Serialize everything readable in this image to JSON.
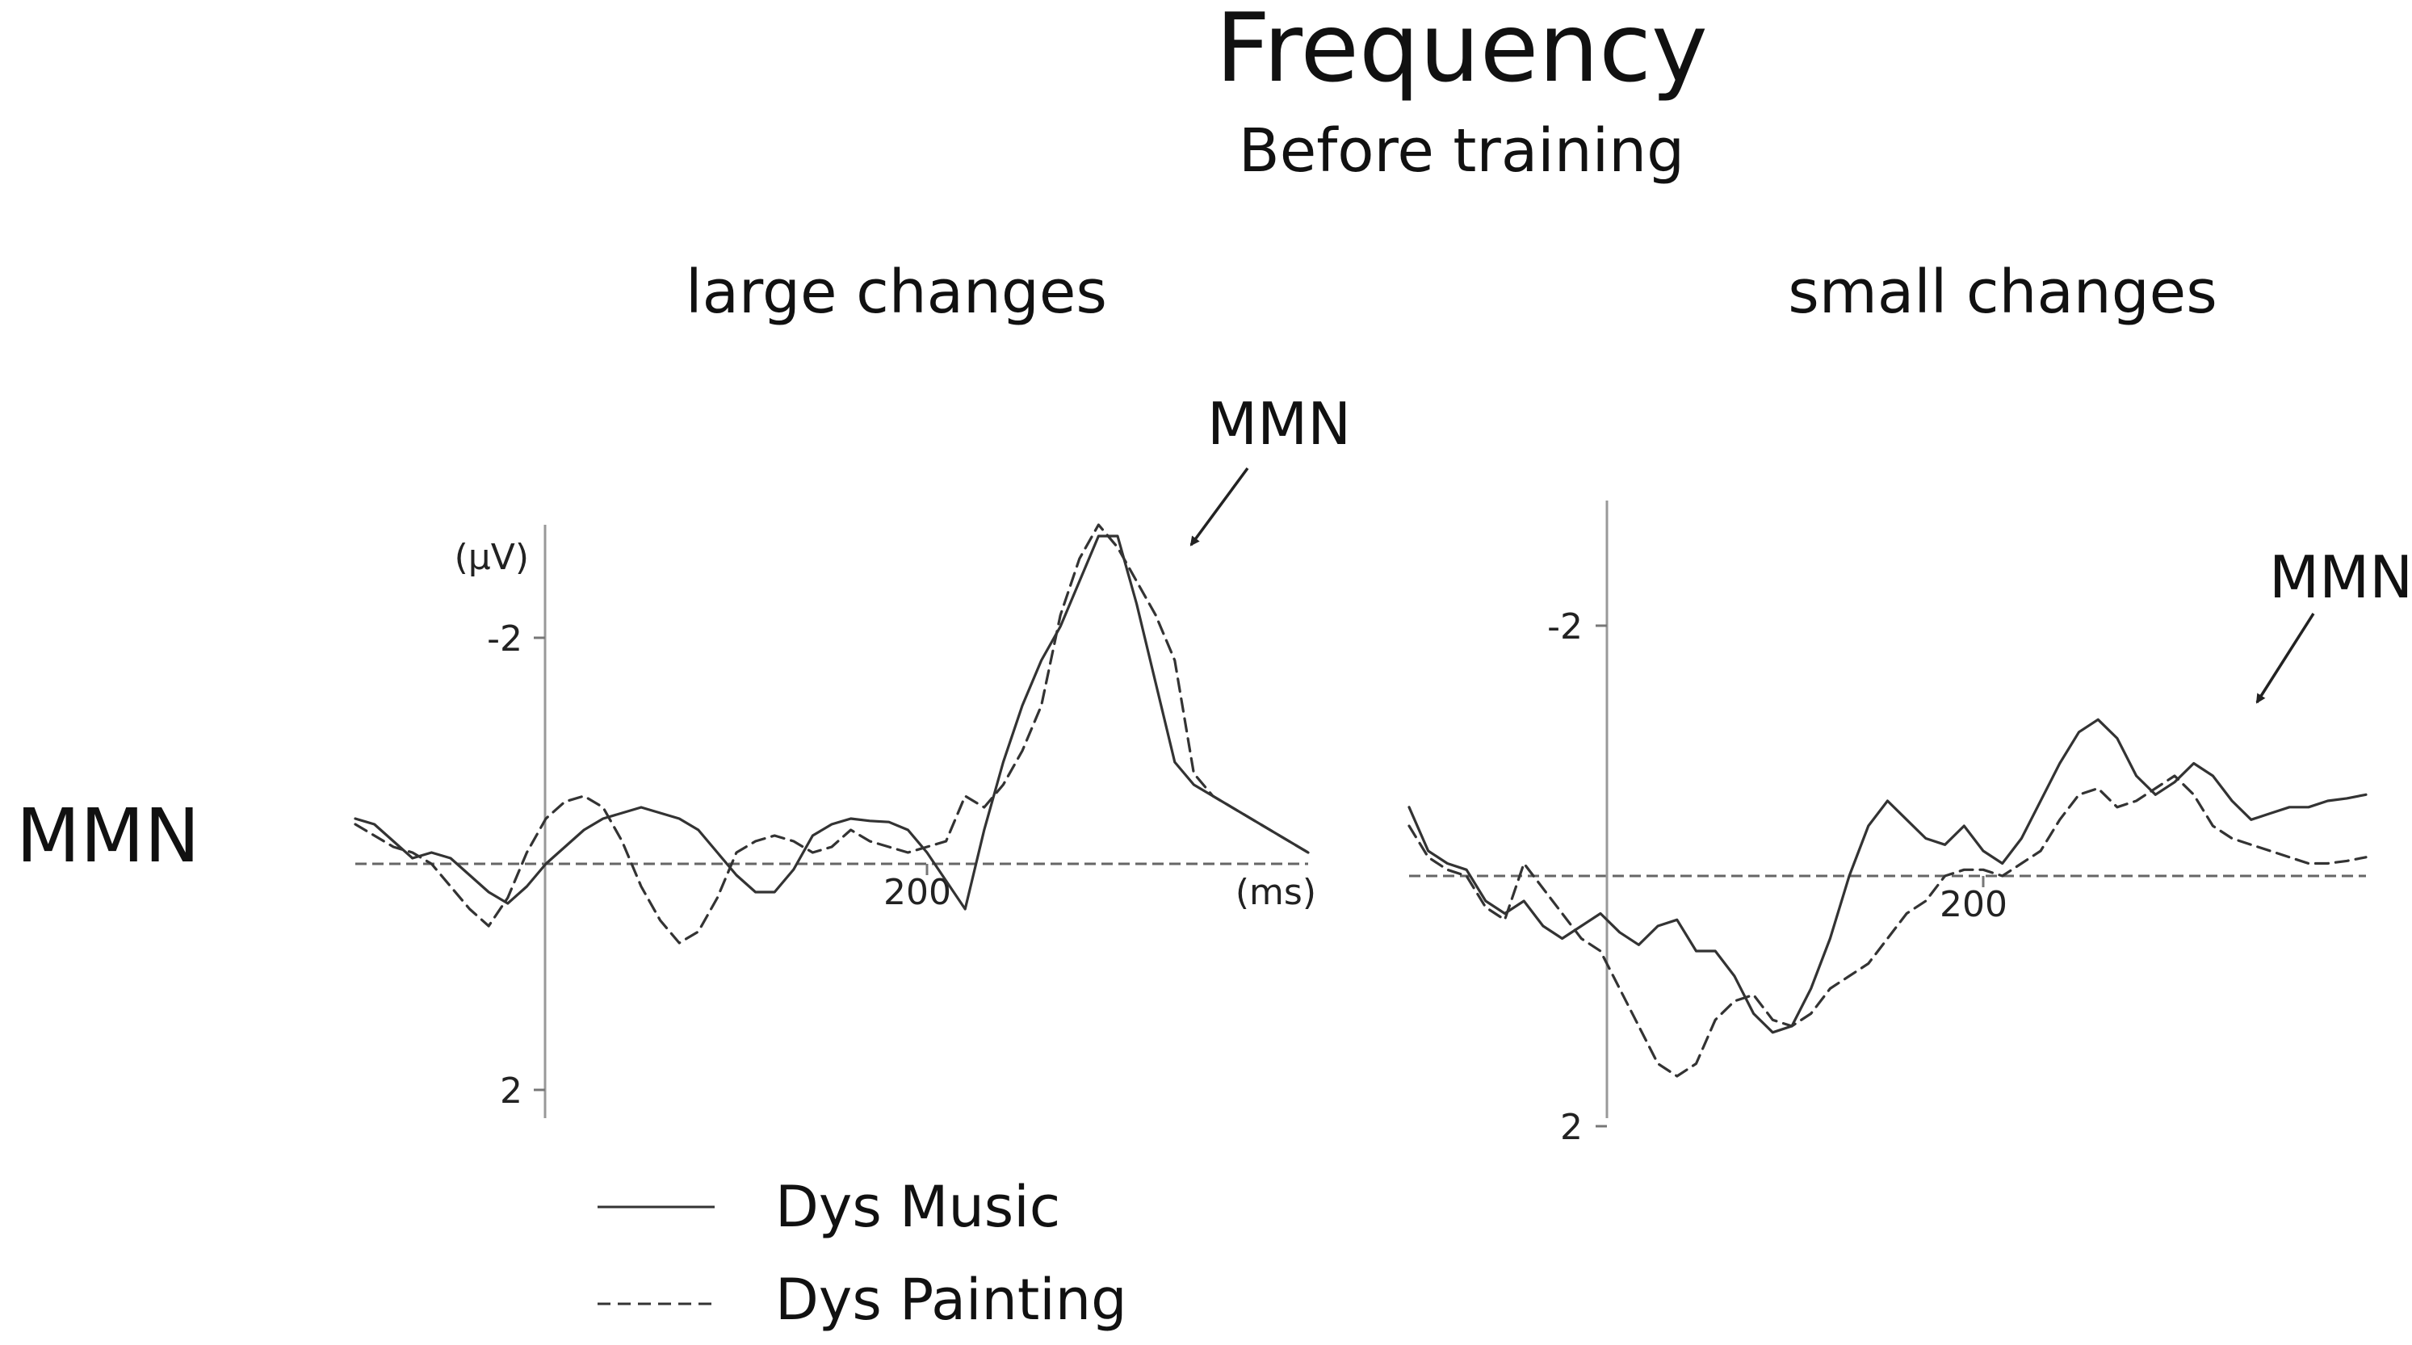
{
  "title": "Frequency",
  "subtitle": "Before training",
  "row_label": "MMN",
  "legend": [
    {
      "label": "Dys Music",
      "style": "solid"
    },
    {
      "label": "Dys Painting",
      "style": "dashed"
    }
  ],
  "colors": {
    "line": "#333333",
    "axis": "#666666"
  },
  "chart_data": [
    {
      "type": "line",
      "title": "large changes",
      "xlabel": "(ms)",
      "ylabel": "(µV)",
      "x_ticks": [
        200
      ],
      "y_ticks": [
        -2,
        2
      ],
      "xlim": [
        -100,
        400
      ],
      "ylim": [
        -3,
        2.3
      ],
      "y_inverted": true,
      "annotation": "MMN",
      "series": [
        {
          "name": "Dys Music",
          "style": "solid",
          "x": [
            -100,
            -90,
            -80,
            -70,
            -60,
            -50,
            -40,
            -30,
            -20,
            -10,
            0,
            10,
            20,
            30,
            40,
            50,
            60,
            70,
            80,
            90,
            100,
            110,
            120,
            130,
            140,
            150,
            160,
            170,
            180,
            190,
            200,
            210,
            220,
            230,
            240,
            250,
            260,
            270,
            280,
            290,
            300,
            310,
            320,
            330,
            340,
            350,
            360,
            370,
            380,
            390,
            400
          ],
          "y": [
            -0.4,
            -0.35,
            -0.2,
            -0.05,
            -0.1,
            -0.05,
            0.1,
            0.25,
            0.35,
            0.2,
            0.0,
            -0.15,
            -0.3,
            -0.4,
            -0.45,
            -0.5,
            -0.45,
            -0.4,
            -0.3,
            -0.1,
            0.1,
            0.25,
            0.25,
            0.05,
            -0.25,
            -0.35,
            -0.4,
            -0.38,
            -0.37,
            -0.3,
            -0.1,
            0.15,
            0.4,
            -0.3,
            -0.9,
            -1.4,
            -1.8,
            -2.1,
            -2.5,
            -2.9,
            -2.9,
            -2.3,
            -1.6,
            -0.9,
            -0.7,
            -0.6,
            -0.5,
            -0.4,
            -0.3,
            -0.2,
            -0.1
          ]
        },
        {
          "name": "Dys Painting",
          "style": "dashed",
          "x": [
            -100,
            -90,
            -80,
            -70,
            -60,
            -50,
            -40,
            -30,
            -20,
            -10,
            0,
            10,
            20,
            30,
            40,
            50,
            60,
            70,
            80,
            90,
            100,
            110,
            120,
            130,
            140,
            150,
            160,
            170,
            180,
            190,
            200,
            210,
            220,
            230,
            240,
            250,
            260,
            270,
            280,
            290,
            300,
            310,
            320,
            330,
            340,
            350,
            360,
            370,
            380,
            390,
            400
          ],
          "y": [
            -0.35,
            -0.25,
            -0.15,
            -0.1,
            0.0,
            0.2,
            0.4,
            0.55,
            0.3,
            -0.1,
            -0.4,
            -0.55,
            -0.6,
            -0.5,
            -0.2,
            0.2,
            0.5,
            0.7,
            0.6,
            0.3,
            -0.1,
            -0.2,
            -0.25,
            -0.2,
            -0.1,
            -0.15,
            -0.3,
            -0.2,
            -0.15,
            -0.1,
            -0.15,
            -0.2,
            -0.6,
            -0.5,
            -0.7,
            -1.0,
            -1.4,
            -2.2,
            -2.7,
            -3.0,
            -2.8,
            -2.5,
            -2.2,
            -1.8,
            -0.8,
            -0.6,
            -0.5,
            -0.4,
            -0.3,
            -0.2,
            -0.1
          ]
        }
      ]
    },
    {
      "type": "line",
      "title": "small changes",
      "xlabel": "",
      "ylabel": "",
      "x_ticks": [
        200
      ],
      "y_ticks": [
        -2,
        2
      ],
      "xlim": [
        -100,
        400
      ],
      "ylim": [
        -3,
        2.3
      ],
      "y_inverted": true,
      "annotation": "MMN",
      "series": [
        {
          "name": "Dys Music",
          "style": "solid",
          "x": [
            -100,
            -90,
            -80,
            -70,
            -60,
            -50,
            -40,
            -30,
            -20,
            -10,
            0,
            10,
            20,
            30,
            40,
            50,
            60,
            70,
            80,
            90,
            100,
            110,
            120,
            130,
            140,
            150,
            160,
            170,
            180,
            190,
            200,
            210,
            220,
            230,
            240,
            250,
            260,
            270,
            280,
            290,
            300,
            310,
            320,
            330,
            340,
            350,
            360,
            370,
            380,
            390,
            400
          ],
          "y": [
            -0.55,
            -0.2,
            -0.1,
            -0.05,
            0.2,
            0.3,
            0.2,
            0.4,
            0.5,
            0.4,
            0.3,
            0.45,
            0.55,
            0.4,
            0.35,
            0.6,
            0.6,
            0.8,
            1.1,
            1.25,
            1.2,
            0.9,
            0.5,
            0.0,
            -0.4,
            -0.6,
            -0.45,
            -0.3,
            -0.25,
            -0.4,
            -0.2,
            -0.1,
            -0.3,
            -0.6,
            -0.9,
            -1.15,
            -1.25,
            -1.1,
            -0.8,
            -0.65,
            -0.75,
            -0.9,
            -0.8,
            -0.6,
            -0.45,
            -0.5,
            -0.55,
            -0.55,
            -0.6,
            -0.62,
            -0.65
          ]
        },
        {
          "name": "Dys Painting",
          "style": "dashed",
          "x": [
            -100,
            -90,
            -80,
            -70,
            -60,
            -50,
            -40,
            -30,
            -20,
            -10,
            0,
            10,
            20,
            30,
            40,
            50,
            60,
            70,
            80,
            90,
            100,
            110,
            120,
            130,
            140,
            150,
            160,
            170,
            180,
            190,
            200,
            210,
            220,
            230,
            240,
            250,
            260,
            270,
            280,
            290,
            300,
            310,
            320,
            330,
            340,
            350,
            360,
            370,
            380,
            390,
            400
          ],
          "y": [
            -0.4,
            -0.15,
            -0.05,
            0.0,
            0.25,
            0.35,
            -0.1,
            0.1,
            0.3,
            0.5,
            0.6,
            0.9,
            1.2,
            1.5,
            1.6,
            1.5,
            1.15,
            1.0,
            0.95,
            1.15,
            1.2,
            1.1,
            0.9,
            0.8,
            0.7,
            0.5,
            0.3,
            0.2,
            0.0,
            -0.05,
            -0.05,
            0.0,
            -0.1,
            -0.2,
            -0.45,
            -0.65,
            -0.7,
            -0.55,
            -0.6,
            -0.7,
            -0.8,
            -0.65,
            -0.4,
            -0.3,
            -0.25,
            -0.2,
            -0.15,
            -0.1,
            -0.1,
            -0.12,
            -0.15
          ]
        }
      ]
    }
  ]
}
